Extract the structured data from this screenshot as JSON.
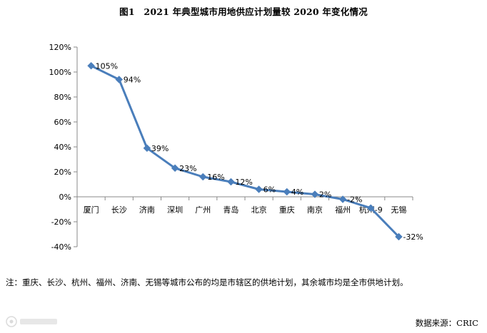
{
  "title": "图1　2021 年典型城市用地供应计划量较 2020 年变化情况",
  "chart_data": {
    "type": "line",
    "categories": [
      "厦门",
      "长沙",
      "济南",
      "深圳",
      "广州",
      "青岛",
      "北京",
      "重庆",
      "南京",
      "福州",
      "杭州-9",
      "无锡"
    ],
    "series": [
      {
        "values": [
          105,
          94,
          39,
          23,
          16,
          12,
          6,
          4,
          2,
          -2,
          -9,
          -32
        ]
      }
    ],
    "data_labels": [
      "105%",
      "94%",
      "39%",
      "23%",
      "16%",
      "12%",
      "6%",
      "4%",
      "2%",
      "-2%",
      "",
      "-32%"
    ],
    "ylim": [
      -40,
      120
    ],
    "yticks": [
      -40,
      -20,
      0,
      20,
      40,
      60,
      80,
      100,
      120
    ],
    "ytick_labels": [
      "-40%",
      "-20%",
      "0%",
      "20%",
      "40%",
      "60%",
      "80%",
      "100%",
      "120%"
    ],
    "line_color": "#4a7ebb",
    "marker": "diamond",
    "grid": false,
    "legend": "none"
  },
  "note": "注：重庆、长沙、杭州、福州、济南、无锡等城市公布的均是市辖区的供地计划，其余城市均是全市供地计划。",
  "source": "数据来源：CRIC",
  "watermark_logo": "大数跨境"
}
